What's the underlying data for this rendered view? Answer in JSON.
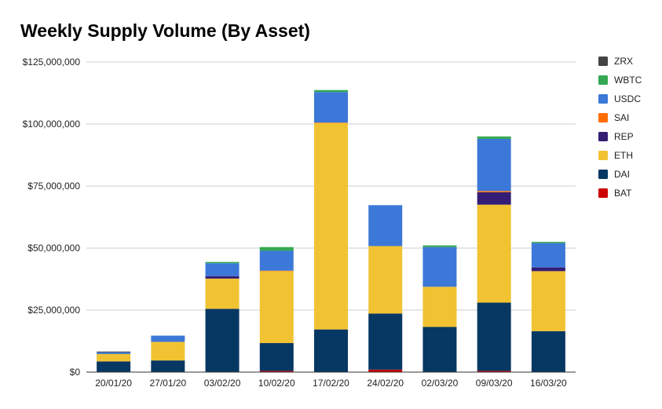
{
  "chart_data": {
    "type": "bar",
    "stacked": true,
    "title": "Weekly Supply Volume (By Asset)",
    "xlabel": "",
    "ylabel": "",
    "ylim": [
      0,
      125000000
    ],
    "y_ticks": [
      0,
      25000000,
      50000000,
      75000000,
      100000000,
      125000000
    ],
    "y_tick_labels": [
      "$0",
      "$25,000,000",
      "$50,000,000",
      "$75,000,000",
      "$100,000,000",
      "$125,000,000"
    ],
    "grid": true,
    "legend_position": "right",
    "categories": [
      "20/01/20",
      "27/01/20",
      "03/02/20",
      "10/02/20",
      "17/02/20",
      "24/02/20",
      "02/03/20",
      "09/03/20",
      "16/03/20"
    ],
    "series": [
      {
        "name": "BAT",
        "color": "#cc0000",
        "values": [
          0,
          0,
          0,
          500000,
          0,
          1000000,
          0,
          500000,
          0
        ]
      },
      {
        "name": "DAI",
        "color": "#073763",
        "values": [
          4300000,
          4700000,
          25500000,
          11200000,
          17200000,
          22600000,
          18200000,
          27500000,
          16500000
        ]
      },
      {
        "name": "ETH",
        "color": "#f1c232",
        "values": [
          3000000,
          7500000,
          12200000,
          29000000,
          83200000,
          27200000,
          16200000,
          39500000,
          24200000
        ]
      },
      {
        "name": "REP",
        "color": "#351c75",
        "values": [
          0,
          0,
          1000000,
          0,
          0,
          0,
          0,
          5000000,
          1500000
        ]
      },
      {
        "name": "SAI",
        "color": "#ff6d01",
        "values": [
          0,
          0,
          0,
          200000,
          200000,
          0,
          0,
          500000,
          0
        ]
      },
      {
        "name": "USDC",
        "color": "#3c78d8",
        "values": [
          700000,
          2500000,
          5200000,
          8000000,
          12300000,
          16500000,
          16000000,
          21000000,
          9800000
        ]
      },
      {
        "name": "WBTC",
        "color": "#34a853",
        "values": [
          0,
          0,
          500000,
          1500000,
          800000,
          0,
          700000,
          1000000,
          500000
        ]
      },
      {
        "name": "ZRX",
        "color": "#434343",
        "values": [
          300000,
          0,
          0,
          0,
          0,
          0,
          0,
          0,
          0
        ]
      }
    ],
    "legend_order": [
      "ZRX",
      "WBTC",
      "USDC",
      "SAI",
      "REP",
      "ETH",
      "DAI",
      "BAT"
    ]
  }
}
